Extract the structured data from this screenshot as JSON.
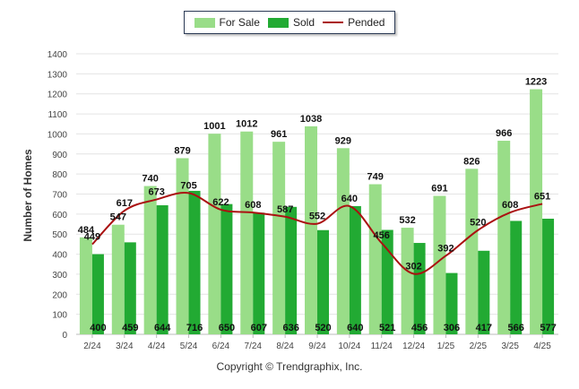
{
  "chart_data": {
    "type": "bar",
    "categories": [
      "2/24",
      "3/24",
      "4/24",
      "5/24",
      "6/24",
      "7/24",
      "8/24",
      "9/24",
      "10/24",
      "11/24",
      "12/24",
      "1/25",
      "2/25",
      "3/25",
      "4/25"
    ],
    "series": [
      {
        "name": "For Sale",
        "type": "bar",
        "color": "#99dd88",
        "values": [
          484,
          547,
          740,
          879,
          1001,
          1012,
          961,
          1038,
          929,
          749,
          532,
          691,
          826,
          966,
          1223
        ]
      },
      {
        "name": "Sold",
        "type": "bar",
        "color": "#22aa33",
        "values": [
          400,
          459,
          644,
          716,
          650,
          607,
          636,
          520,
          640,
          521,
          456,
          306,
          417,
          566,
          577
        ]
      },
      {
        "name": "Pended",
        "type": "line",
        "color": "#aa1111",
        "values": [
          449,
          617,
          673,
          705,
          622,
          608,
          587,
          552,
          640,
          456,
          302,
          392,
          520,
          608,
          651
        ]
      }
    ],
    "ylabel": "Number of Homes",
    "ylim": [
      0,
      1400
    ],
    "yticks": [
      0,
      100,
      200,
      300,
      400,
      500,
      600,
      700,
      800,
      900,
      1000,
      1100,
      1200,
      1300,
      1400
    ],
    "grid": true,
    "legend_position": "top-center"
  },
  "footer": {
    "credit": "Copyright © Trendgraphix, Inc."
  }
}
